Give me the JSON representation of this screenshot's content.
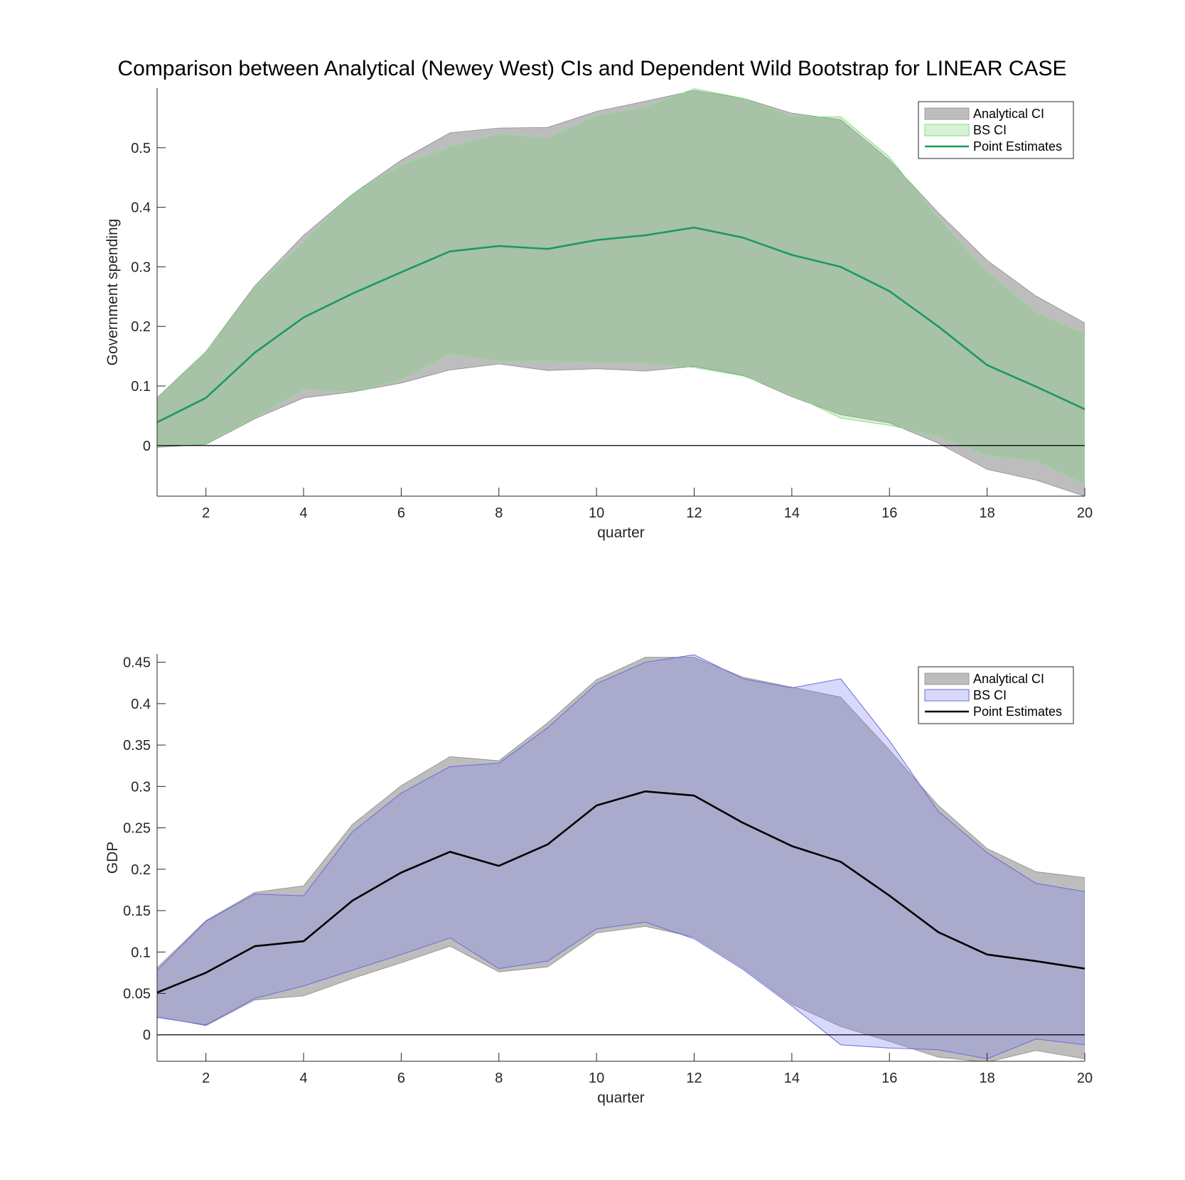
{
  "figure_title": "Comparison between Analytical (Newey West) CIs and Dependent Wild Bootstrap for LINEAR CASE",
  "colors": {
    "analytical_fill": "#bdbdbd",
    "analytical_edge": "#8c8c8c",
    "bs_fill_top": "#6fd06f",
    "bs_edge_top": "#7fe07f",
    "point_top": "#1a9a5e",
    "bs_fill_bottom": "#7f7fef",
    "bs_edge_bottom": "#6b6bdc",
    "point_bottom": "#000000",
    "axis": "#262626"
  },
  "chart_data": [
    {
      "type": "area",
      "xlabel": "quarter",
      "ylabel": "Government spending",
      "xlim": [
        1,
        20
      ],
      "ylim": [
        -0.085,
        0.6
      ],
      "xticks": [
        2,
        4,
        6,
        8,
        10,
        12,
        14,
        16,
        18,
        20
      ],
      "yticks": [
        0,
        0.1,
        0.2,
        0.3,
        0.4,
        0.5
      ],
      "ytick_labels": [
        "0",
        "0.1",
        "0.2",
        "0.3",
        "0.4",
        "0.5"
      ],
      "zero_line": true,
      "legend": {
        "position": "top-right",
        "entries": [
          "Analytical CI",
          "BS CI",
          "Point Estimates"
        ]
      },
      "x": [
        1,
        2,
        3,
        4,
        5,
        6,
        7,
        8,
        9,
        10,
        11,
        12,
        13,
        14,
        15,
        16,
        17,
        18,
        19,
        20
      ],
      "series": [
        {
          "name": "Analytical CI",
          "kind": "band",
          "lower": [
            -0.003,
            0.002,
            0.045,
            0.08,
            0.09,
            0.105,
            0.127,
            0.137,
            0.126,
            0.129,
            0.125,
            0.133,
            0.118,
            0.082,
            0.052,
            0.038,
            0.004,
            -0.04,
            -0.058,
            -0.085
          ],
          "upper": [
            0.08,
            0.158,
            0.268,
            0.353,
            0.422,
            0.479,
            0.525,
            0.533,
            0.534,
            0.561,
            0.578,
            0.596,
            0.583,
            0.558,
            0.547,
            0.479,
            0.391,
            0.311,
            0.251,
            0.206
          ]
        },
        {
          "name": "BS CI",
          "kind": "band",
          "lower": [
            0.0,
            0.004,
            0.048,
            0.096,
            0.091,
            0.112,
            0.155,
            0.143,
            0.143,
            0.14,
            0.14,
            0.131,
            0.117,
            0.086,
            0.046,
            0.034,
            0.016,
            -0.015,
            -0.025,
            -0.063
          ],
          "upper": [
            0.077,
            0.158,
            0.264,
            0.34,
            0.422,
            0.47,
            0.5,
            0.522,
            0.515,
            0.553,
            0.567,
            0.599,
            0.583,
            0.551,
            0.552,
            0.484,
            0.38,
            0.29,
            0.222,
            0.186
          ]
        },
        {
          "name": "Point Estimates",
          "kind": "line",
          "values": [
            0.039,
            0.08,
            0.156,
            0.215,
            0.255,
            0.291,
            0.326,
            0.335,
            0.33,
            0.345,
            0.353,
            0.366,
            0.349,
            0.32,
            0.3,
            0.259,
            0.2,
            0.135,
            0.099,
            0.061
          ]
        }
      ]
    },
    {
      "type": "area",
      "xlabel": "quarter",
      "ylabel": "GDP",
      "xlim": [
        1,
        20
      ],
      "ylim": [
        -0.032,
        0.46
      ],
      "xticks": [
        2,
        4,
        6,
        8,
        10,
        12,
        14,
        16,
        18,
        20
      ],
      "yticks": [
        0,
        0.05,
        0.1,
        0.15,
        0.2,
        0.25,
        0.3,
        0.35,
        0.4,
        0.45
      ],
      "ytick_labels": [
        "0",
        "0.05",
        "0.1",
        "0.15",
        "0.2",
        "0.25",
        "0.3",
        "0.35",
        "0.4",
        "0.45"
      ],
      "zero_line": true,
      "legend": {
        "position": "top-right",
        "entries": [
          "Analytical CI",
          "BS CI",
          "Point Estimates"
        ]
      },
      "x": [
        1,
        2,
        3,
        4,
        5,
        6,
        7,
        8,
        9,
        10,
        11,
        12,
        13,
        14,
        15,
        16,
        17,
        18,
        19,
        20
      ],
      "series": [
        {
          "name": "Analytical CI",
          "kind": "band",
          "lower": [
            0.022,
            0.011,
            0.042,
            0.047,
            0.068,
            0.087,
            0.107,
            0.076,
            0.082,
            0.123,
            0.131,
            0.118,
            0.081,
            0.037,
            0.01,
            -0.008,
            -0.027,
            -0.033,
            -0.019,
            -0.029
          ],
          "upper": [
            0.081,
            0.138,
            0.172,
            0.18,
            0.254,
            0.301,
            0.336,
            0.331,
            0.377,
            0.429,
            0.456,
            0.456,
            0.432,
            0.42,
            0.408,
            0.344,
            0.277,
            0.225,
            0.197,
            0.19
          ]
        },
        {
          "name": "BS CI",
          "kind": "band",
          "lower": [
            0.021,
            0.012,
            0.044,
            0.059,
            0.078,
            0.097,
            0.117,
            0.08,
            0.089,
            0.128,
            0.136,
            0.116,
            0.079,
            0.035,
            -0.012,
            -0.016,
            -0.018,
            -0.029,
            -0.005,
            -0.012
          ],
          "upper": [
            0.078,
            0.137,
            0.17,
            0.168,
            0.245,
            0.292,
            0.324,
            0.328,
            0.371,
            0.424,
            0.45,
            0.459,
            0.43,
            0.419,
            0.43,
            0.355,
            0.27,
            0.22,
            0.183,
            0.173
          ]
        },
        {
          "name": "Point Estimates",
          "kind": "line",
          "values": [
            0.051,
            0.075,
            0.107,
            0.113,
            0.162,
            0.196,
            0.221,
            0.204,
            0.23,
            0.277,
            0.294,
            0.289,
            0.256,
            0.228,
            0.209,
            0.168,
            0.124,
            0.097,
            0.089,
            0.08
          ]
        }
      ]
    }
  ]
}
